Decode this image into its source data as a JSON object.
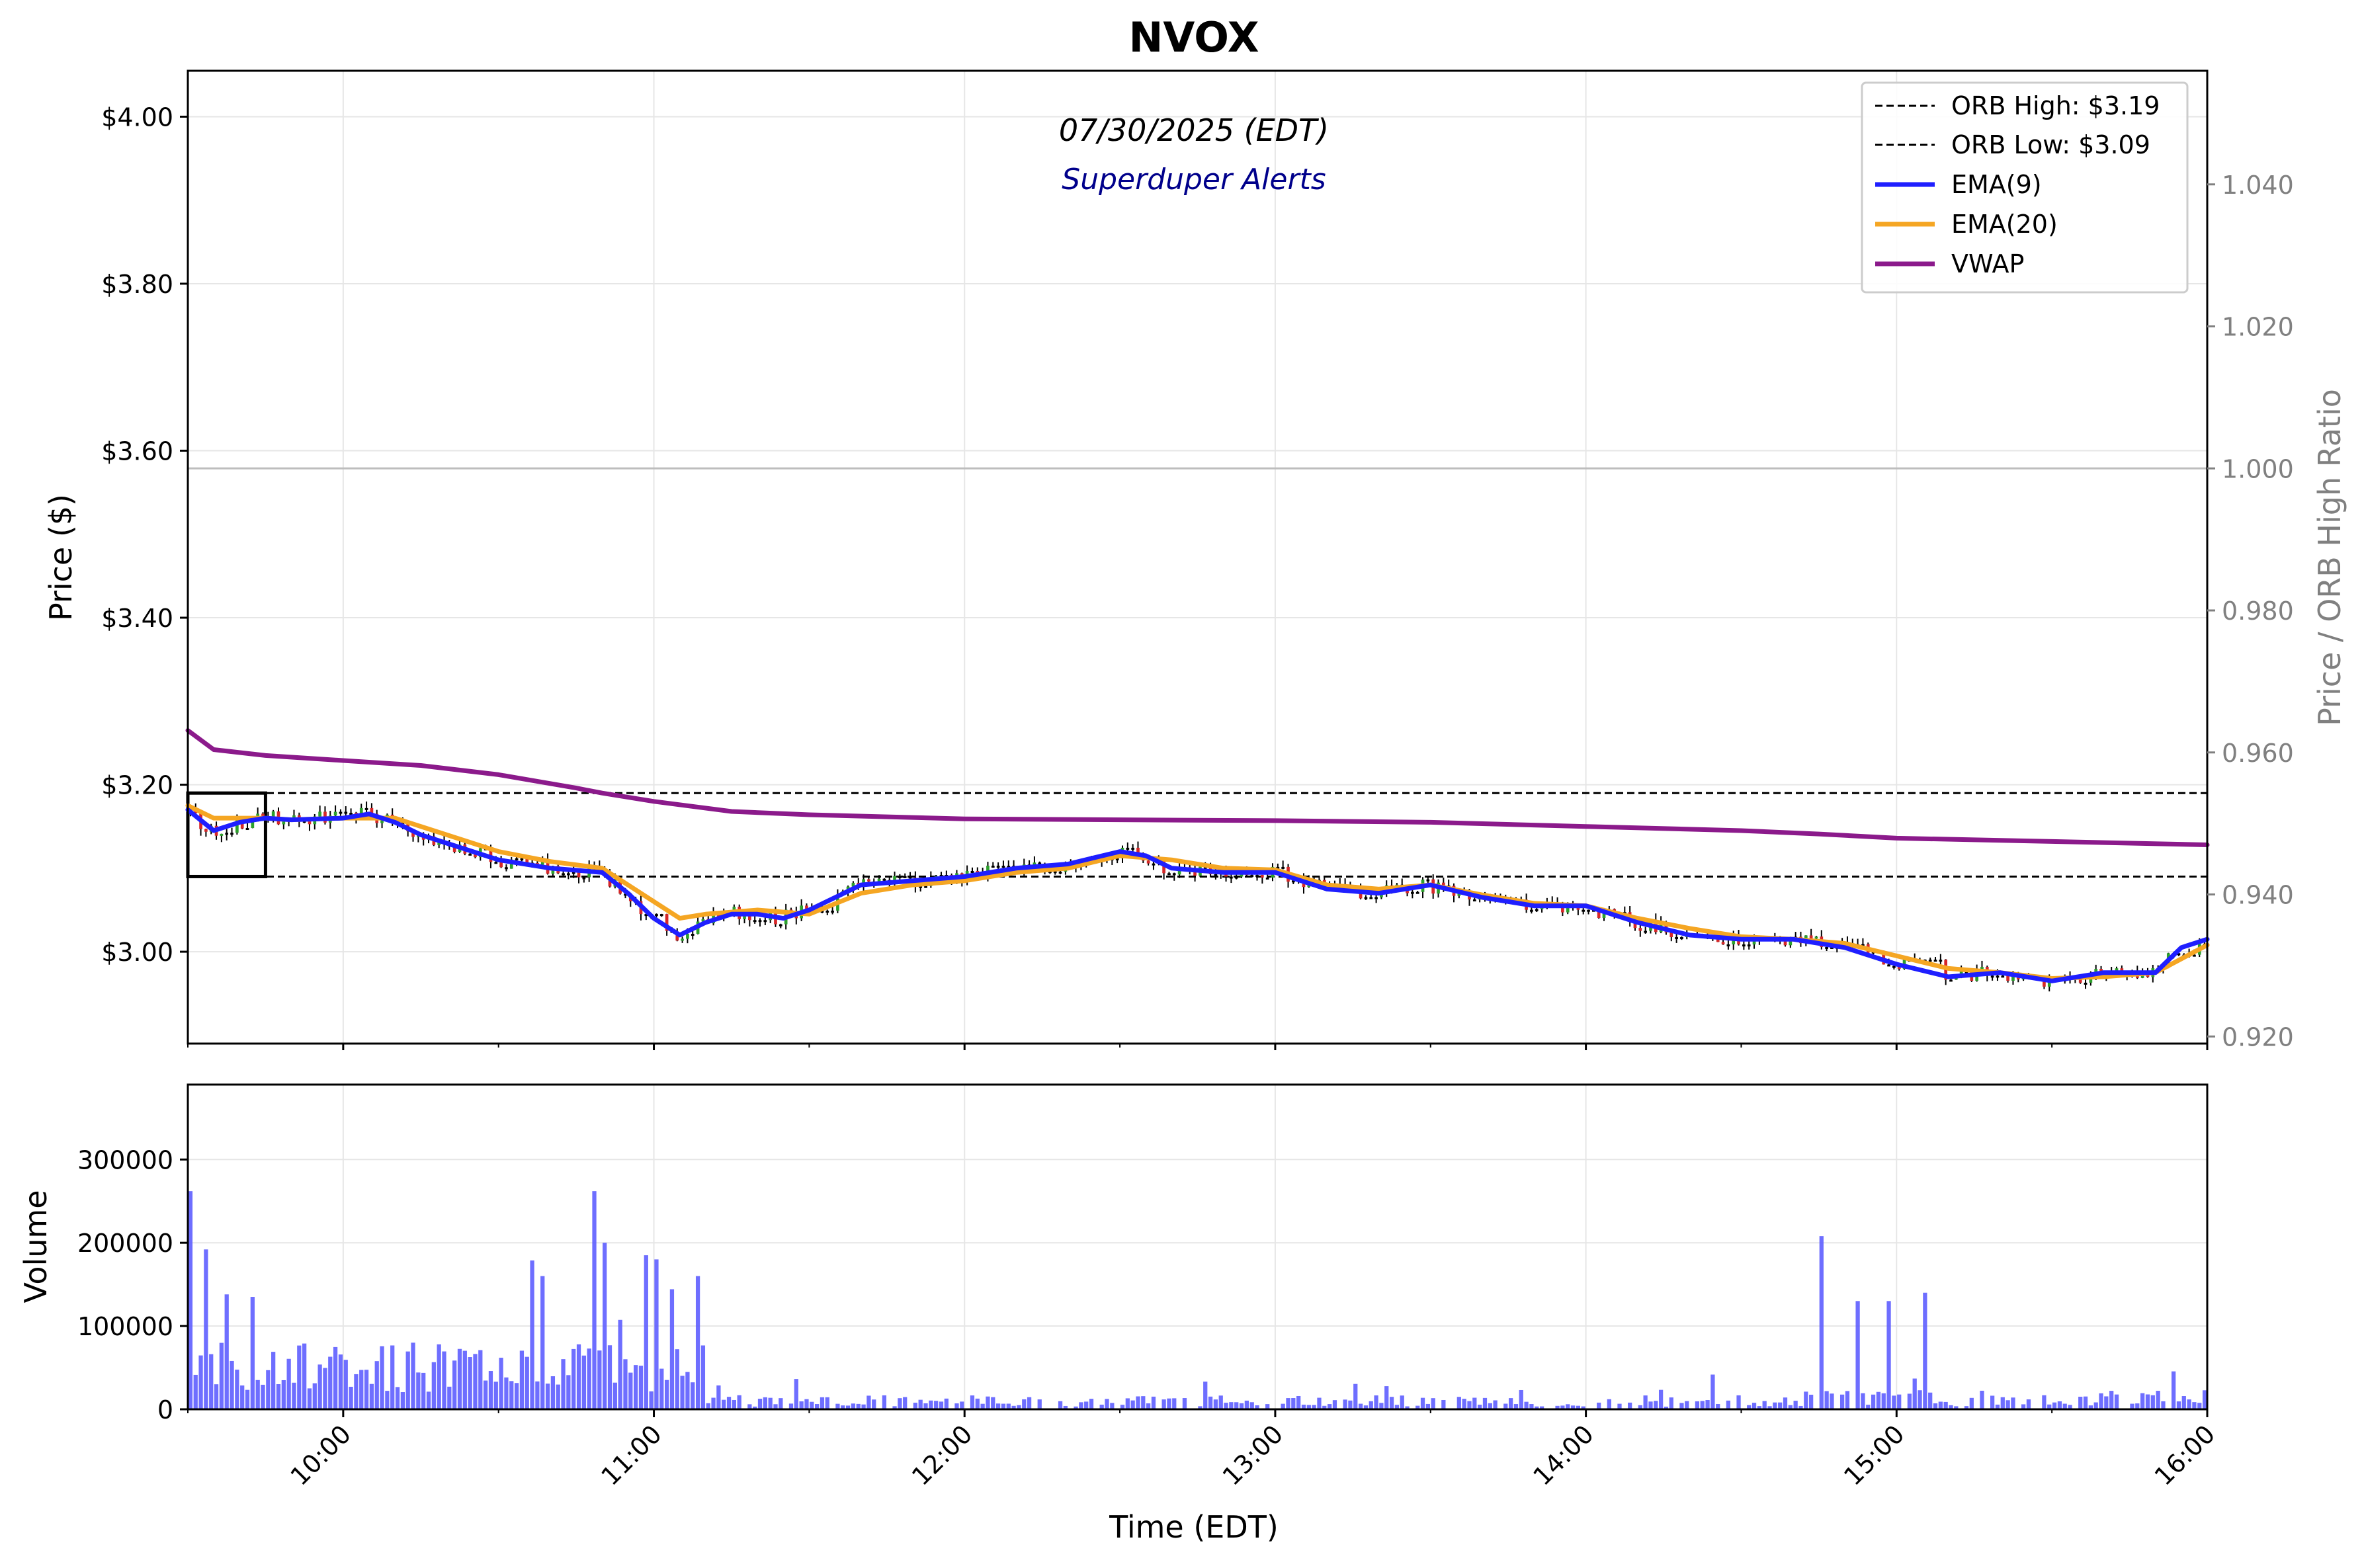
{
  "chart_data": [
    {
      "type": "candlestick",
      "title": "NVOX",
      "subtitle": "07/30/2025 (EDT)",
      "annotation": "Superduper Alerts",
      "ylabel": "Price ($)",
      "y2label": "Price / ORB High Ratio",
      "ylim": [
        2.89,
        4.055
      ],
      "y2lim": [
        0.919,
        1.056
      ],
      "yticks": [
        "$3.00",
        "$3.20",
        "$3.40",
        "$3.60",
        "$3.80",
        "$4.00"
      ],
      "ytick_values": [
        3.0,
        3.2,
        3.4,
        3.6,
        3.8,
        4.0
      ],
      "y2ticks": [
        "0.920",
        "0.940",
        "0.960",
        "0.980",
        "1.000",
        "1.020",
        "1.040"
      ],
      "y2tick_values": [
        0.92,
        0.94,
        0.96,
        0.98,
        1.0,
        1.02,
        1.04
      ],
      "xlim": [
        "09:30",
        "16:00"
      ],
      "grid": true,
      "legend_position": "top-right",
      "legend": [
        {
          "label": "ORB High: $3.19",
          "style": "dashed",
          "color": "#000000"
        },
        {
          "label": "ORB Low: $3.09",
          "style": "dashed",
          "color": "#000000"
        },
        {
          "label": "EMA(9)",
          "style": "solid",
          "color": "#1f1fff"
        },
        {
          "label": "EMA(20)",
          "style": "solid",
          "color": "#f5a623"
        },
        {
          "label": "VWAP",
          "style": "solid",
          "color": "#8b1a8b"
        }
      ],
      "orb_high": 3.19,
      "orb_low": 3.09,
      "orb_window": [
        "09:30",
        "09:45"
      ],
      "ratio_reference": 1.0,
      "candle_colors": {
        "up": "#2ca02c",
        "down": "#d62728",
        "doji": "#000000"
      },
      "vwap": {
        "x": [
          "09:30",
          "09:35",
          "09:45",
          "10:00",
          "10:15",
          "10:30",
          "10:45",
          "10:50",
          "11:00",
          "11:15",
          "11:30",
          "12:00",
          "12:30",
          "13:00",
          "13:30",
          "14:00",
          "14:30",
          "14:45",
          "15:00",
          "15:30",
          "16:00"
        ],
        "y": [
          3.265,
          3.242,
          3.235,
          3.229,
          3.223,
          3.212,
          3.196,
          3.19,
          3.18,
          3.168,
          3.164,
          3.159,
          3.158,
          3.157,
          3.155,
          3.15,
          3.145,
          3.141,
          3.136,
          3.132,
          3.128
        ]
      },
      "ema9": {
        "x": [
          "09:30",
          "09:35",
          "09:40",
          "09:45",
          "09:50",
          "10:00",
          "10:05",
          "10:10",
          "10:15",
          "10:20",
          "10:30",
          "10:40",
          "10:50",
          "10:55",
          "11:00",
          "11:05",
          "11:10",
          "11:15",
          "11:20",
          "11:25",
          "11:30",
          "11:40",
          "11:50",
          "12:00",
          "12:10",
          "12:20",
          "12:30",
          "12:35",
          "12:40",
          "12:50",
          "13:00",
          "13:10",
          "13:20",
          "13:30",
          "13:40",
          "13:50",
          "14:00",
          "14:10",
          "14:20",
          "14:30",
          "14:40",
          "14:50",
          "15:00",
          "15:10",
          "15:20",
          "15:30",
          "15:40",
          "15:50",
          "15:55",
          "16:00"
        ],
        "y": [
          3.17,
          3.145,
          3.155,
          3.16,
          3.158,
          3.16,
          3.165,
          3.155,
          3.14,
          3.13,
          3.11,
          3.1,
          3.095,
          3.07,
          3.04,
          3.02,
          3.035,
          3.045,
          3.045,
          3.04,
          3.05,
          3.08,
          3.085,
          3.09,
          3.1,
          3.105,
          3.12,
          3.115,
          3.1,
          3.095,
          3.095,
          3.075,
          3.07,
          3.08,
          3.065,
          3.055,
          3.055,
          3.035,
          3.02,
          3.015,
          3.015,
          3.005,
          2.985,
          2.97,
          2.975,
          2.965,
          2.975,
          2.975,
          3.005,
          3.015
        ]
      },
      "ema20": {
        "x": [
          "09:30",
          "09:35",
          "09:40",
          "09:45",
          "09:50",
          "10:00",
          "10:10",
          "10:20",
          "10:30",
          "10:40",
          "10:50",
          "11:00",
          "11:05",
          "11:10",
          "11:20",
          "11:30",
          "11:40",
          "11:50",
          "12:00",
          "12:10",
          "12:20",
          "12:30",
          "12:40",
          "12:50",
          "13:00",
          "13:10",
          "13:20",
          "13:30",
          "13:40",
          "13:50",
          "14:00",
          "14:10",
          "14:20",
          "14:30",
          "14:40",
          "14:50",
          "15:00",
          "15:10",
          "15:20",
          "15:30",
          "15:40",
          "15:50",
          "16:00"
        ],
        "y": [
          3.175,
          3.16,
          3.16,
          3.16,
          3.158,
          3.16,
          3.16,
          3.14,
          3.12,
          3.108,
          3.1,
          3.06,
          3.04,
          3.045,
          3.05,
          3.045,
          3.07,
          3.08,
          3.085,
          3.095,
          3.1,
          3.115,
          3.11,
          3.1,
          3.098,
          3.08,
          3.075,
          3.08,
          3.068,
          3.058,
          3.055,
          3.04,
          3.028,
          3.018,
          3.015,
          3.01,
          2.995,
          2.98,
          2.975,
          2.968,
          2.97,
          2.975,
          3.008
        ]
      },
      "candles_note": "1-minute candles from 09:30 to 16:00; closes track EMA(9)"
    },
    {
      "type": "bar",
      "ylabel": "Volume",
      "xlabel": "Time (EDT)",
      "ylim": [
        0,
        390000
      ],
      "yticks": [
        "0",
        "100000",
        "200000",
        "300000"
      ],
      "ytick_values": [
        0,
        100000,
        200000,
        300000
      ],
      "xticks": [
        "10:00",
        "11:00",
        "12:00",
        "13:00",
        "14:00",
        "15:00",
        "16:00"
      ],
      "grid": true,
      "bar_color": "#5555ff",
      "notable_spikes": [
        {
          "x": "09:30",
          "y": 262000
        },
        {
          "x": "09:33",
          "y": 192000
        },
        {
          "x": "09:37",
          "y": 138000
        },
        {
          "x": "09:42",
          "y": 135000
        },
        {
          "x": "10:48",
          "y": 262000
        },
        {
          "x": "10:50",
          "y": 200000
        },
        {
          "x": "10:58",
          "y": 185000
        },
        {
          "x": "11:00",
          "y": 180000
        },
        {
          "x": "11:08",
          "y": 160000
        },
        {
          "x": "10:38",
          "y": 160000
        },
        {
          "x": "14:45",
          "y": 208000
        },
        {
          "x": "15:05",
          "y": 140000
        },
        {
          "x": "14:58",
          "y": 130000
        },
        {
          "x": "14:52",
          "y": 130000
        }
      ]
    }
  ]
}
